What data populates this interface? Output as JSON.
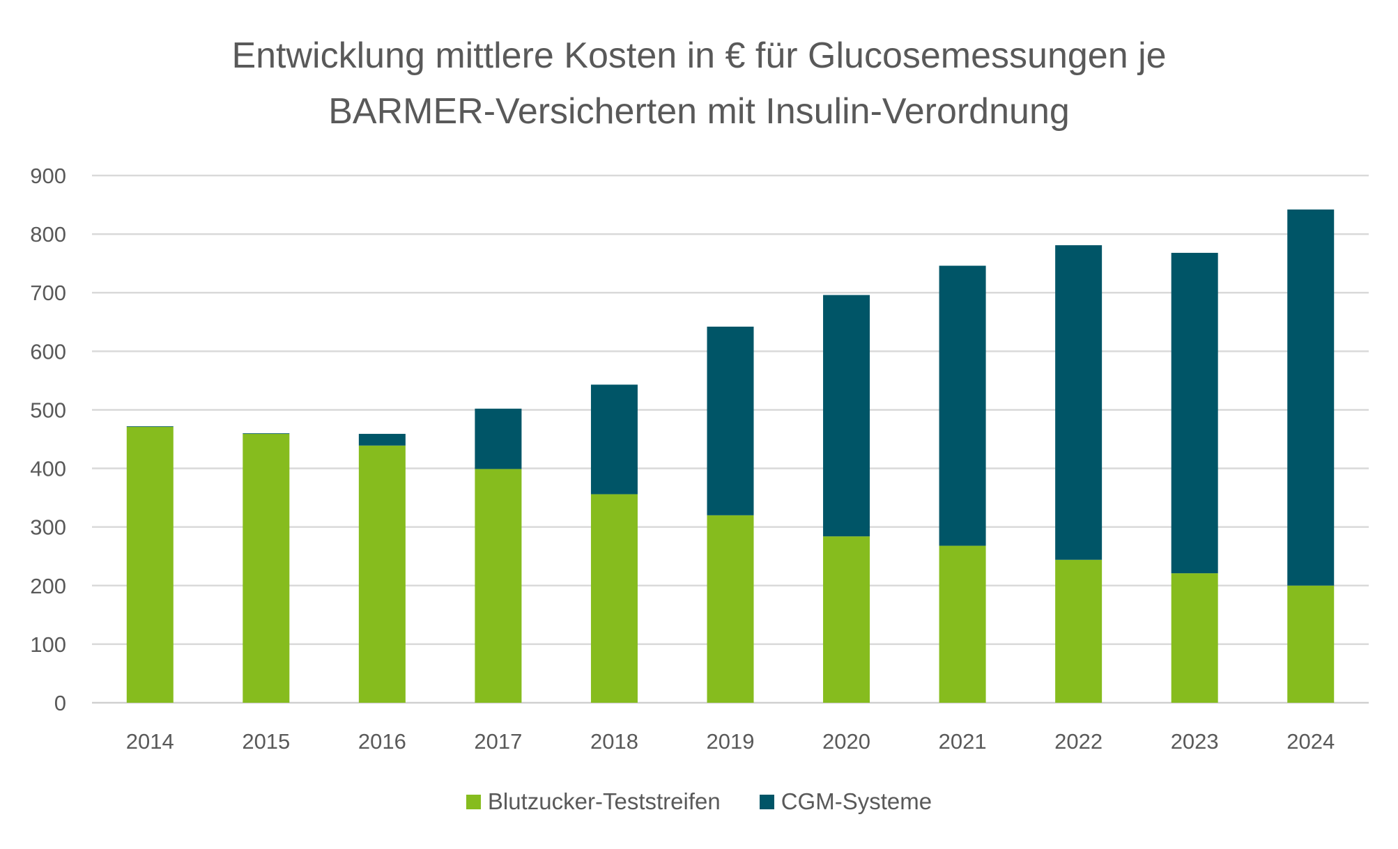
{
  "chart_data": {
    "type": "bar",
    "stacked": true,
    "title": "Entwicklung mittlere Kosten in € für Glucosemessungen je BARMER-Versicherten mit Insulin-Verordnung",
    "title_lines": [
      "Entwicklung mittlere Kosten in € für Glucosemessungen je",
      "BARMER-Versicherten mit Insulin-Verordnung"
    ],
    "xlabel": "",
    "ylabel": "",
    "categories": [
      "2014",
      "2015",
      "2016",
      "2017",
      "2018",
      "2019",
      "2020",
      "2021",
      "2022",
      "2023",
      "2024"
    ],
    "series": [
      {
        "name": "Blutzucker-Teststreifen",
        "color": "#86bc1e",
        "values": [
          471,
          459,
          439,
          399,
          356,
          320,
          284,
          268,
          244,
          221,
          200
        ]
      },
      {
        "name": "CGM-Systeme",
        "color": "#005567",
        "values": [
          1,
          1,
          20,
          103,
          187,
          322,
          412,
          478,
          537,
          547,
          642
        ]
      }
    ],
    "ylim": [
      0,
      900
    ],
    "yticks": [
      0,
      100,
      200,
      300,
      400,
      500,
      600,
      700,
      800,
      900
    ],
    "grid": true,
    "legend": "bottom"
  }
}
